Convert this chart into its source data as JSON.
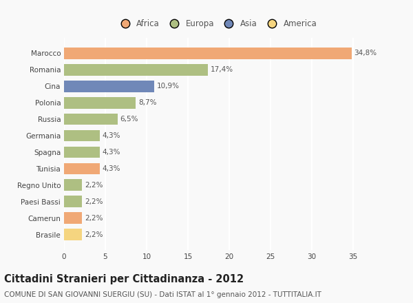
{
  "categories": [
    "Marocco",
    "Romania",
    "Cina",
    "Polonia",
    "Russia",
    "Germania",
    "Spagna",
    "Tunisia",
    "Regno Unito",
    "Paesi Bassi",
    "Camerun",
    "Brasile"
  ],
  "values": [
    34.8,
    17.4,
    10.9,
    8.7,
    6.5,
    4.3,
    4.3,
    4.3,
    2.2,
    2.2,
    2.2,
    2.2
  ],
  "labels": [
    "34,8%",
    "17,4%",
    "10,9%",
    "8,7%",
    "6,5%",
    "4,3%",
    "4,3%",
    "4,3%",
    "2,2%",
    "2,2%",
    "2,2%",
    "2,2%"
  ],
  "colors": [
    "#F0A875",
    "#AEBF82",
    "#7088B8",
    "#AEBF82",
    "#AEBF82",
    "#AEBF82",
    "#AEBF82",
    "#F0A875",
    "#AEBF82",
    "#AEBF82",
    "#F0A875",
    "#F5D580"
  ],
  "legend": {
    "Africa": "#F0A875",
    "Europa": "#AEBF82",
    "Asia": "#7088B8",
    "America": "#F5D580"
  },
  "legend_order": [
    "Africa",
    "Europa",
    "Asia",
    "America"
  ],
  "xlim": [
    0,
    37
  ],
  "xticks": [
    0,
    5,
    10,
    15,
    20,
    25,
    30,
    35
  ],
  "title": "Cittadini Stranieri per Cittadinanza - 2012",
  "subtitle": "COMUNE DI SAN GIOVANNI SUERGIU (SU) - Dati ISTAT al 1° gennaio 2012 - TUTTITALIA.IT",
  "background_color": "#f9f9f9",
  "grid_color": "#ffffff",
  "bar_height": 0.7,
  "title_fontsize": 10.5,
  "subtitle_fontsize": 7.5,
  "label_fontsize": 7.5,
  "tick_fontsize": 7.5,
  "legend_fontsize": 8.5
}
